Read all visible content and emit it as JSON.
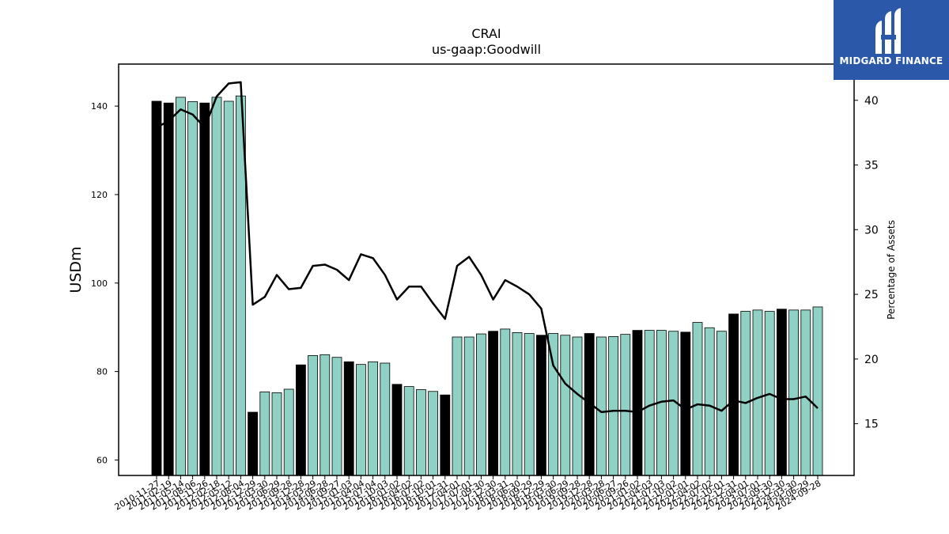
{
  "brand": {
    "name": "MIDGARD FINANCE",
    "bg_color": "#2b58a8",
    "mark_icon": "midgard-logo-icon"
  },
  "chart_data": {
    "type": "bar",
    "title": "CRAI",
    "subtitle": "us-gaap:Goodwill",
    "ylabel": "USDm",
    "y2label": "Percentage of Assets",
    "ylim": [
      56.5,
      149.5
    ],
    "y2lim": [
      11,
      42.8
    ],
    "yticks": [
      60,
      80,
      100,
      120,
      140
    ],
    "y2ticks": [
      15,
      20,
      25,
      30,
      35,
      40
    ],
    "colors": {
      "annual_bar": "#000000",
      "quarter_bar": "#8fd1c4",
      "line": "#000000"
    },
    "categories": [
      "2010-11-27",
      "2011-02-19",
      "2011-05-14",
      "2011-08-06",
      "2011-11-26",
      "2012-02-18",
      "2012-05-12",
      "2012-08-04",
      "2012-12-29",
      "2013-03-30",
      "2013-06-29",
      "2013-09-28",
      "2013-12-28",
      "2014-03-29",
      "2014-06-28",
      "2014-09-27",
      "2015-01-03",
      "2015-04-04",
      "2015-07-04",
      "2015-10-03",
      "2016-01-02",
      "2016-04-02",
      "2016-07-02",
      "2016-10-01",
      "2016-12-31",
      "2017-04-01",
      "2017-07-01",
      "2017-09-30",
      "2017-12-30",
      "2018-03-31",
      "2018-06-30",
      "2018-09-29",
      "2018-12-29",
      "2019-03-30",
      "2019-06-29",
      "2019-09-28",
      "2019-12-28",
      "2020-03-28",
      "2020-06-27",
      "2020-09-26",
      "2021-01-02",
      "2021-04-03",
      "2021-07-03",
      "2021-10-02",
      "2022-01-01",
      "2022-04-02",
      "2022-07-02",
      "2022-10-01",
      "2022-12-31",
      "2023-04-01",
      "2023-07-01",
      "2023-09-30",
      "2023-12-30",
      "2024-03-30",
      "2024-06-29",
      "2024-09-28"
    ],
    "tick_labels": [
      "2010-11-27",
      "2011-02-19",
      "2011-05-14",
      "2011-08-06",
      "2011-11-26",
      "2012-02-18",
      "2012-05-12",
      "2012-08-04",
      "2012-12-29",
      "2013-03-30",
      "2013-06-29",
      "2013-09-28",
      "2013-12-28",
      "2014-03-29",
      "2014-06-28",
      "2014-09-27",
      "2015-01-03",
      "2015-04-04",
      "2015-07-04",
      "2015-10-03",
      "2016-01-02",
      "2016-04-02",
      "2016-07-02",
      "2016-10-01",
      "2016-12-31",
      "2017-04-01",
      "2017-07-01",
      "2017-09-30",
      "2017-12-30",
      "2018-03-31",
      "2018-06-30",
      "2018-09-29",
      "2018-12-29",
      "2019-03-30",
      "2019-06-29",
      "2019-09-28",
      "2019-12-28",
      "2020-03-28",
      "2020-06-27",
      "2020-09-26",
      "2021-01-02",
      "2021-04-03",
      "2021-07-03",
      "2021-10-02",
      "2022-01-01",
      "2022-04-02",
      "2022-07-02",
      "2022-10-01",
      "2022-12-31",
      "2023-04-01",
      "2023-07-01",
      "2023-09-30",
      "2023-12-30",
      "2024-03-30",
      "2024-06-29",
      "2024-09-28"
    ],
    "annual_flags": [
      1,
      1,
      0,
      0,
      1,
      0,
      0,
      0,
      1,
      0,
      0,
      0,
      1,
      0,
      0,
      0,
      1,
      0,
      0,
      0,
      1,
      0,
      0,
      0,
      1,
      0,
      0,
      0,
      1,
      0,
      0,
      0,
      1,
      0,
      0,
      0,
      1,
      0,
      0,
      0,
      1,
      0,
      0,
      0,
      1,
      0,
      0,
      0,
      1,
      0,
      0,
      0,
      1,
      0,
      0,
      0
    ],
    "series": [
      {
        "values": [
          141.1,
          140.7,
          142.0,
          141.0,
          140.7,
          142.0,
          141.1,
          142.3,
          70.8,
          75.4,
          75.2,
          76.0,
          81.5,
          83.6,
          83.8,
          83.2,
          82.2,
          81.6,
          82.2,
          81.9,
          77.1,
          76.6,
          75.9,
          75.5,
          74.7,
          87.8,
          87.8,
          88.5,
          89.1,
          89.6,
          88.8,
          88.6,
          88.2,
          88.6,
          88.2,
          87.8,
          88.6,
          87.8,
          87.9,
          88.4,
          89.3,
          89.3,
          89.3,
          89.1,
          88.9,
          91.1,
          89.9,
          89.1,
          93.0,
          93.6,
          93.9,
          93.6,
          94.1,
          93.9,
          93.9,
          94.6
        ]
      },
      {
        "values": [
          37.9,
          38.4,
          39.3,
          38.9,
          37.9,
          40.3,
          41.3,
          41.4,
          24.2,
          24.8,
          26.5,
          25.4,
          25.5,
          27.2,
          27.3,
          26.9,
          26.1,
          28.1,
          27.8,
          26.5,
          24.6,
          25.6,
          25.6,
          24.3,
          23.1,
          27.2,
          27.9,
          26.5,
          24.6,
          26.1,
          25.6,
          25.0,
          23.9,
          19.5,
          18.1,
          17.3,
          16.6,
          15.9,
          16.0,
          16.0,
          15.9,
          16.4,
          16.7,
          16.8,
          16.1,
          16.5,
          16.4,
          16.0,
          16.8,
          16.6,
          17.0,
          17.3,
          16.9,
          16.9,
          17.1,
          16.2
        ]
      }
    ]
  }
}
